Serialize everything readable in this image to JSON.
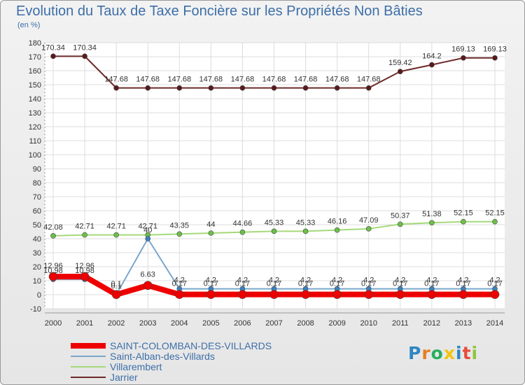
{
  "title": "Evolution du Taux de Taxe Foncière sur les Propriétés Non Bâties",
  "unit_label": "(en %)",
  "logo": {
    "letters": [
      "P",
      "r",
      "o",
      "x",
      "i",
      "t",
      "i"
    ],
    "colors": [
      "#2e86c1",
      "#e67e22",
      "#27ae60",
      "#f1c40f",
      "#2e86c1",
      "#e74c3c",
      "#8dc63f"
    ]
  },
  "chart_data": {
    "type": "line",
    "title": "Evolution du Taux de Taxe Foncière sur les Propriétés Non Bâties",
    "ylabel": "(en %)",
    "xlabel": "",
    "ylim": [
      -10,
      180
    ],
    "yticks": [
      -10,
      0,
      10,
      20,
      30,
      40,
      50,
      60,
      70,
      80,
      90,
      100,
      110,
      120,
      130,
      140,
      150,
      160,
      170,
      180
    ],
    "x": [
      "2000",
      "2001",
      "2002",
      "2003",
      "2004",
      "2005",
      "2006",
      "2007",
      "2008",
      "2009",
      "2010",
      "2011",
      "2012",
      "2013",
      "2014"
    ],
    "grid": true,
    "legend_position": "bottom-left",
    "series": [
      {
        "name": "Jarrier",
        "color": "#6e2a2a",
        "marker": "#5a1a1a",
        "values": [
          170.34,
          170.34,
          147.68,
          147.68,
          147.68,
          147.68,
          147.68,
          147.68,
          147.68,
          147.68,
          147.68,
          159.42,
          164.2,
          169.13,
          169.13
        ],
        "labels": [
          "170.34",
          "170.34",
          "147.68",
          "147.68",
          "147.68",
          "147.68",
          "147.68",
          "147.68",
          "147.68",
          "147.68",
          "147.68",
          "159.42",
          "164.2",
          "169.13",
          "169.13"
        ]
      },
      {
        "name": "Villarembert",
        "color": "#a6d97a",
        "marker": "#6cc04a",
        "values": [
          42.08,
          42.71,
          42.71,
          42.71,
          43.35,
          44,
          44.66,
          45.33,
          45.33,
          46.16,
          47.09,
          50.37,
          51.38,
          52.15,
          52.15
        ],
        "labels": [
          "42.08",
          "42.71",
          "42.71",
          "42.71",
          "43.35",
          "44",
          "44.66",
          "45.33",
          "45.33",
          "46.16",
          "47.09",
          "50.37",
          "51.38",
          "52.15",
          "52.15"
        ]
      },
      {
        "name": "Saint-Alban-des-Villards",
        "color": "#7ba7cc",
        "marker": "#3d7fc0",
        "values": [
          10.98,
          10.98,
          0.1,
          40,
          4.2,
          4.2,
          4.2,
          4.2,
          4.2,
          4.2,
          4.2,
          4.2,
          4.2,
          4.2,
          4.2
        ],
        "labels": [
          "10.98",
          "10.98",
          "0.1",
          "40",
          "4.2",
          "4.2",
          "4.2",
          "4.2",
          "4.2",
          "4.2",
          "4.2",
          "4.2",
          "4.2",
          "4.2",
          "4.2"
        ]
      },
      {
        "name": "SAINT-COLOMBAN-DES-VILLARDS",
        "color": "#ee0000",
        "marker": "#ee0000",
        "values": [
          12.96,
          12.96,
          0.1,
          6.63,
          0.17,
          0.17,
          0.17,
          0.17,
          0.17,
          0.17,
          0.17,
          0.17,
          0.17,
          0.17,
          0.17
        ],
        "labels": [
          "12.96",
          "12.96",
          "0.1",
          "6.63",
          "0.17",
          "0.17",
          "0.17",
          "0.17",
          "0.17",
          "0.17",
          "0.17",
          "0.17",
          "0.17",
          "0.17",
          "0.17"
        ]
      }
    ],
    "legend": [
      "SAINT-COLOMBAN-DES-VILLARDS",
      "Saint-Alban-des-Villards",
      "Villarembert",
      "Jarrier"
    ]
  }
}
